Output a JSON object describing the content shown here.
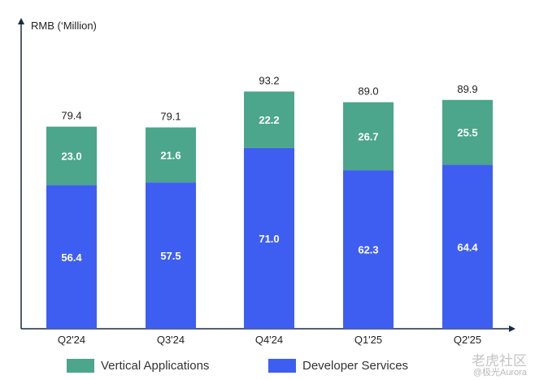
{
  "chart_data": {
    "type": "bar",
    "stacked": true,
    "ylabel": "RMB (‘Million)",
    "ylim": [
      0,
      110
    ],
    "grid": false,
    "legend_placement": "bottom",
    "categories": [
      "Q2'24",
      "Q3'24",
      "Q4'24",
      "Q1'25",
      "Q2'25"
    ],
    "series": [
      {
        "name": "Developer Services",
        "color": "#3e5ef1",
        "values": [
          56.4,
          57.5,
          71.0,
          62.3,
          64.4
        ],
        "labels": [
          "56.4",
          "57.5",
          "71.0",
          "62.3",
          "64.4"
        ]
      },
      {
        "name": "Vertical Applications",
        "color": "#4ba68b",
        "values": [
          23.0,
          21.6,
          22.2,
          26.7,
          25.5
        ],
        "labels": [
          "23.0",
          "21.6",
          "22.2",
          "26.7",
          "25.5"
        ]
      }
    ],
    "totals": [
      79.4,
      79.1,
      93.2,
      89.0,
      89.9
    ],
    "total_labels": [
      "79.4",
      "79.1",
      "93.2",
      "89.0",
      "89.9"
    ]
  },
  "legend": {
    "vertical": {
      "label": "Vertical Applications",
      "color": "#4ba68b"
    },
    "developer": {
      "label": "Developer Services",
      "color": "#3e5ef1"
    }
  },
  "watermark": {
    "line1": "老虎社区",
    "line2": "@极光Aurora"
  }
}
